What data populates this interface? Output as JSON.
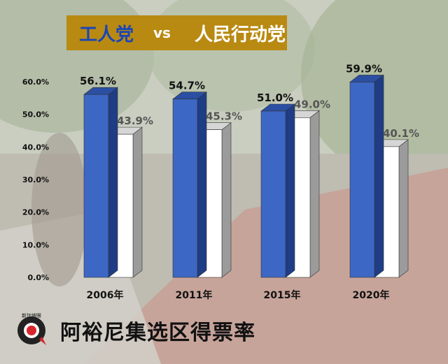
{
  "header": {
    "left": "工人党",
    "vs": "vs",
    "right": "人民行动党"
  },
  "footer": {
    "title": "阿裕尼集选区得票率",
    "logo_text": "新加坡眼"
  },
  "colors": {
    "workers_party": "#3d67c4",
    "pap": "#ffffff",
    "title_bar": "#b98a12"
  },
  "chart_data": {
    "type": "bar",
    "categories": [
      "2006年",
      "2011年",
      "2015年",
      "2020年"
    ],
    "series": [
      {
        "name": "工人党",
        "values": [
          56.1,
          54.7,
          51.0,
          59.9
        ],
        "labels": [
          "56.1%",
          "54.7%",
          "51.0%",
          "59.9%"
        ]
      },
      {
        "name": "人民行动党",
        "values": [
          43.9,
          45.3,
          49.0,
          40.1
        ],
        "labels": [
          "43.9%",
          "45.3%",
          "49.0%",
          "40.1%"
        ]
      }
    ],
    "y_ticks": [
      "0.0%",
      "10.0%",
      "20.0%",
      "30.0%",
      "40.0%",
      "50.0%",
      "60.0%"
    ],
    "ylim": [
      0,
      60
    ],
    "grid": false,
    "style": "3d"
  }
}
